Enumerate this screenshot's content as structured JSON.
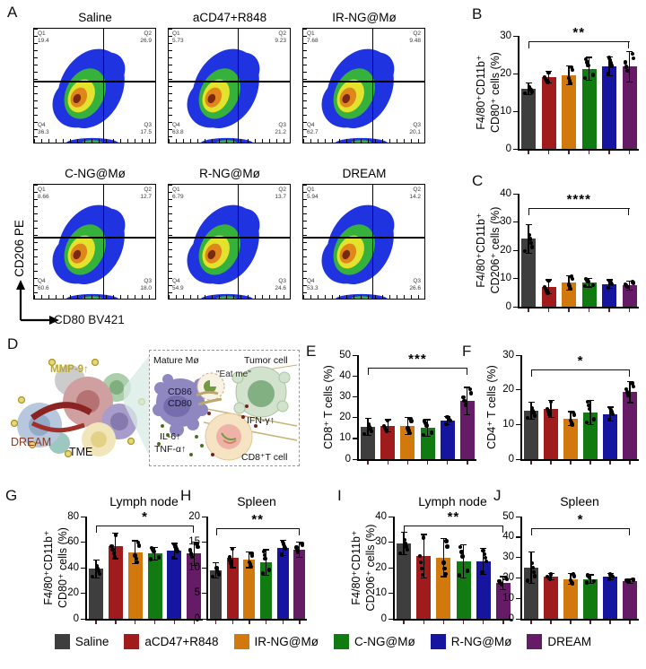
{
  "panels": {
    "A": "A",
    "B": "B",
    "C": "C",
    "D": "D",
    "E": "E",
    "F": "F",
    "G": "G",
    "H": "H",
    "I": "I",
    "J": "J"
  },
  "groups": [
    {
      "name": "Saline",
      "color": "#3E3E3E"
    },
    {
      "name": "aCD47+R848",
      "color": "#A01C1C"
    },
    {
      "name": "IR-NG@Mø",
      "color": "#D2790E"
    },
    {
      "name": "C-NG@Mø",
      "color": "#117A11"
    },
    {
      "name": "R-NG@Mø",
      "color": "#1515A0"
    },
    {
      "name": "DREAM",
      "color": "#661B66"
    }
  ],
  "flow": {
    "xlabel": "CD80 BV421",
    "ylabel": "CD206 PE",
    "plots": [
      {
        "title": "Saline",
        "q1": "19.4",
        "q2": "26.9",
        "q3": "17.5",
        "q4": "36.3"
      },
      {
        "title": "aCD47+R848",
        "q1": "5.73",
        "q2": "9.23",
        "q3": "21.2",
        "q4": "63.8"
      },
      {
        "title": "IR-NG@Mø",
        "q1": "7.68",
        "q2": "9.48",
        "q3": "20.1",
        "q4": "62.7"
      },
      {
        "title": "C-NG@Mø",
        "q1": "8.66",
        "q2": "12.7",
        "q3": "18.0",
        "q4": "60.6"
      },
      {
        "title": "R-NG@Mø",
        "q1": "6.79",
        "q2": "13.7",
        "q3": "24.6",
        "q4": "54.9"
      },
      {
        "title": "DREAM",
        "q1": "5.94",
        "q2": "14.2",
        "q3": "26.6",
        "q4": "53.3"
      }
    ]
  },
  "diagram": {
    "mmp9": "MMP-9↑",
    "dream": "DREAM",
    "tme": "TME",
    "mature": "Mature Mø",
    "cd86": "CD86",
    "cd80": "CD80",
    "eatme": "\"Eat me\"",
    "tumor": "Tumor cell",
    "ifng": "IFN-γ↑",
    "il6": "IL-6↑",
    "tnfa": "TNF-α↑",
    "cd8t": "CD8⁺T cell"
  },
  "chart_data": [
    {
      "panel": "B",
      "type": "bar",
      "title": "",
      "ylabel_lines": [
        "F4/80⁺CD11b⁺",
        "CD80⁺ cells (%)"
      ],
      "categories": [
        "Saline",
        "aCD47+R848",
        "IR-NG@Mø",
        "C-NG@Mø",
        "R-NG@Mø",
        "DREAM"
      ],
      "values": [
        16,
        19,
        19.5,
        21.3,
        22,
        21.8
      ],
      "errors": [
        1.5,
        1.5,
        2.5,
        3,
        2.5,
        4
      ],
      "ylim": [
        0,
        30
      ],
      "yticks": [
        0,
        10,
        20,
        30
      ],
      "significance": "**",
      "sig_span": [
        0,
        5
      ]
    },
    {
      "panel": "C",
      "type": "bar",
      "title": "",
      "ylabel_lines": [
        "F4/80⁺CD11b⁺",
        "CD206⁺ cells (%)"
      ],
      "categories": [
        "Saline",
        "aCD47+R848",
        "IR-NG@Mø",
        "C-NG@Mø",
        "R-NG@Mø",
        "DREAM"
      ],
      "values": [
        24,
        7,
        8.5,
        8.5,
        8,
        7.5
      ],
      "errors": [
        5,
        2.5,
        2.5,
        1.5,
        1.5,
        1.5
      ],
      "ylim": [
        0,
        40
      ],
      "yticks": [
        0,
        10,
        20,
        30,
        40
      ],
      "significance": "****",
      "sig_span": [
        0,
        5
      ]
    },
    {
      "panel": "E",
      "type": "bar",
      "title": "",
      "ylabel_lines": [
        "CD8⁺ T cells (%)"
      ],
      "categories": [
        "Saline",
        "aCD47+R848",
        "IR-NG@Mø",
        "C-NG@Mø",
        "R-NG@Mø",
        "DREAM"
      ],
      "values": [
        15.5,
        16,
        16,
        15,
        18.5,
        28
      ],
      "errors": [
        4,
        3,
        4,
        4,
        2,
        6.5
      ],
      "ylim": [
        0,
        50
      ],
      "yticks": [
        0,
        10,
        20,
        30,
        40,
        50
      ],
      "significance": "***",
      "sig_span": [
        0,
        5
      ]
    },
    {
      "panel": "F",
      "type": "bar",
      "title": "",
      "ylabel_lines": [
        "CD4⁺ T cells (%)"
      ],
      "categories": [
        "Saline",
        "aCD47+R848",
        "IR-NG@Mø",
        "C-NG@Mø",
        "R-NG@Mø",
        "DREAM"
      ],
      "values": [
        14,
        14.5,
        11.7,
        13.5,
        13,
        19.3
      ],
      "errors": [
        2.5,
        2.5,
        2,
        3.5,
        2,
        3
      ],
      "ylim": [
        0,
        30
      ],
      "yticks": [
        0,
        10,
        20,
        30
      ],
      "significance": "*",
      "sig_span": [
        0,
        5
      ]
    },
    {
      "panel": "G",
      "type": "bar",
      "title": "Lymph node",
      "ylabel_lines": [
        "F4/80⁺CD11b⁺",
        "CD80⁺ cells (%)"
      ],
      "categories": [
        "Saline",
        "aCD47+R848",
        "IR-NG@Mø",
        "C-NG@Mø",
        "R-NG@Mø",
        "DREAM"
      ],
      "values": [
        39,
        57,
        52,
        51,
        53,
        51
      ],
      "errors": [
        7,
        10,
        9,
        5,
        6,
        9
      ],
      "ylim": [
        0,
        80
      ],
      "yticks": [
        0,
        20,
        40,
        60,
        80
      ],
      "significance": "*",
      "sig_span": [
        0,
        5
      ]
    },
    {
      "panel": "H",
      "type": "bar",
      "title": "Spleen",
      "ylabel_lines": [],
      "categories": [
        "Saline",
        "aCD47+R848",
        "IR-NG@Mø",
        "C-NG@Mø",
        "R-NG@Mø",
        "DREAM"
      ],
      "values": [
        9.5,
        12,
        11.5,
        11,
        13.8,
        13.5
      ],
      "errors": [
        1.5,
        2,
        1.5,
        2.5,
        1.5,
        1.5
      ],
      "ylim": [
        0,
        20
      ],
      "yticks": [
        0,
        5,
        10,
        15,
        20
      ],
      "significance": "**",
      "sig_span": [
        0,
        5
      ]
    },
    {
      "panel": "I",
      "type": "bar",
      "title": "Lymph node",
      "ylabel_lines": [
        "F4/80⁺CD11b⁺",
        "CD206⁺ cells (%)"
      ],
      "categories": [
        "Saline",
        "aCD47+R848",
        "IR-NG@Mø",
        "C-NG@Mø",
        "R-NG@Mø",
        "DREAM"
      ],
      "values": [
        29.5,
        24.5,
        24,
        22.5,
        22.5,
        14
      ],
      "errors": [
        4.5,
        8.5,
        7.5,
        6.5,
        5,
        2.5
      ],
      "ylim": [
        0,
        40
      ],
      "yticks": [
        0,
        10,
        20,
        30,
        40
      ],
      "significance": "**",
      "sig_span": [
        0,
        5
      ]
    },
    {
      "panel": "J",
      "type": "bar",
      "title": "Spleen",
      "ylabel_lines": [],
      "categories": [
        "Saline",
        "aCD47+R848",
        "IR-NG@Mø",
        "C-NG@Mø",
        "R-NG@Mø",
        "DREAM"
      ],
      "values": [
        25,
        20.5,
        19.5,
        19.5,
        20.5,
        18.5
      ],
      "errors": [
        7.5,
        1.5,
        2.5,
        2,
        1.5,
        1
      ],
      "ylim": [
        0,
        50
      ],
      "yticks": [
        0,
        10,
        20,
        30,
        40,
        50
      ],
      "significance": "*",
      "sig_span": [
        0,
        5
      ]
    }
  ]
}
